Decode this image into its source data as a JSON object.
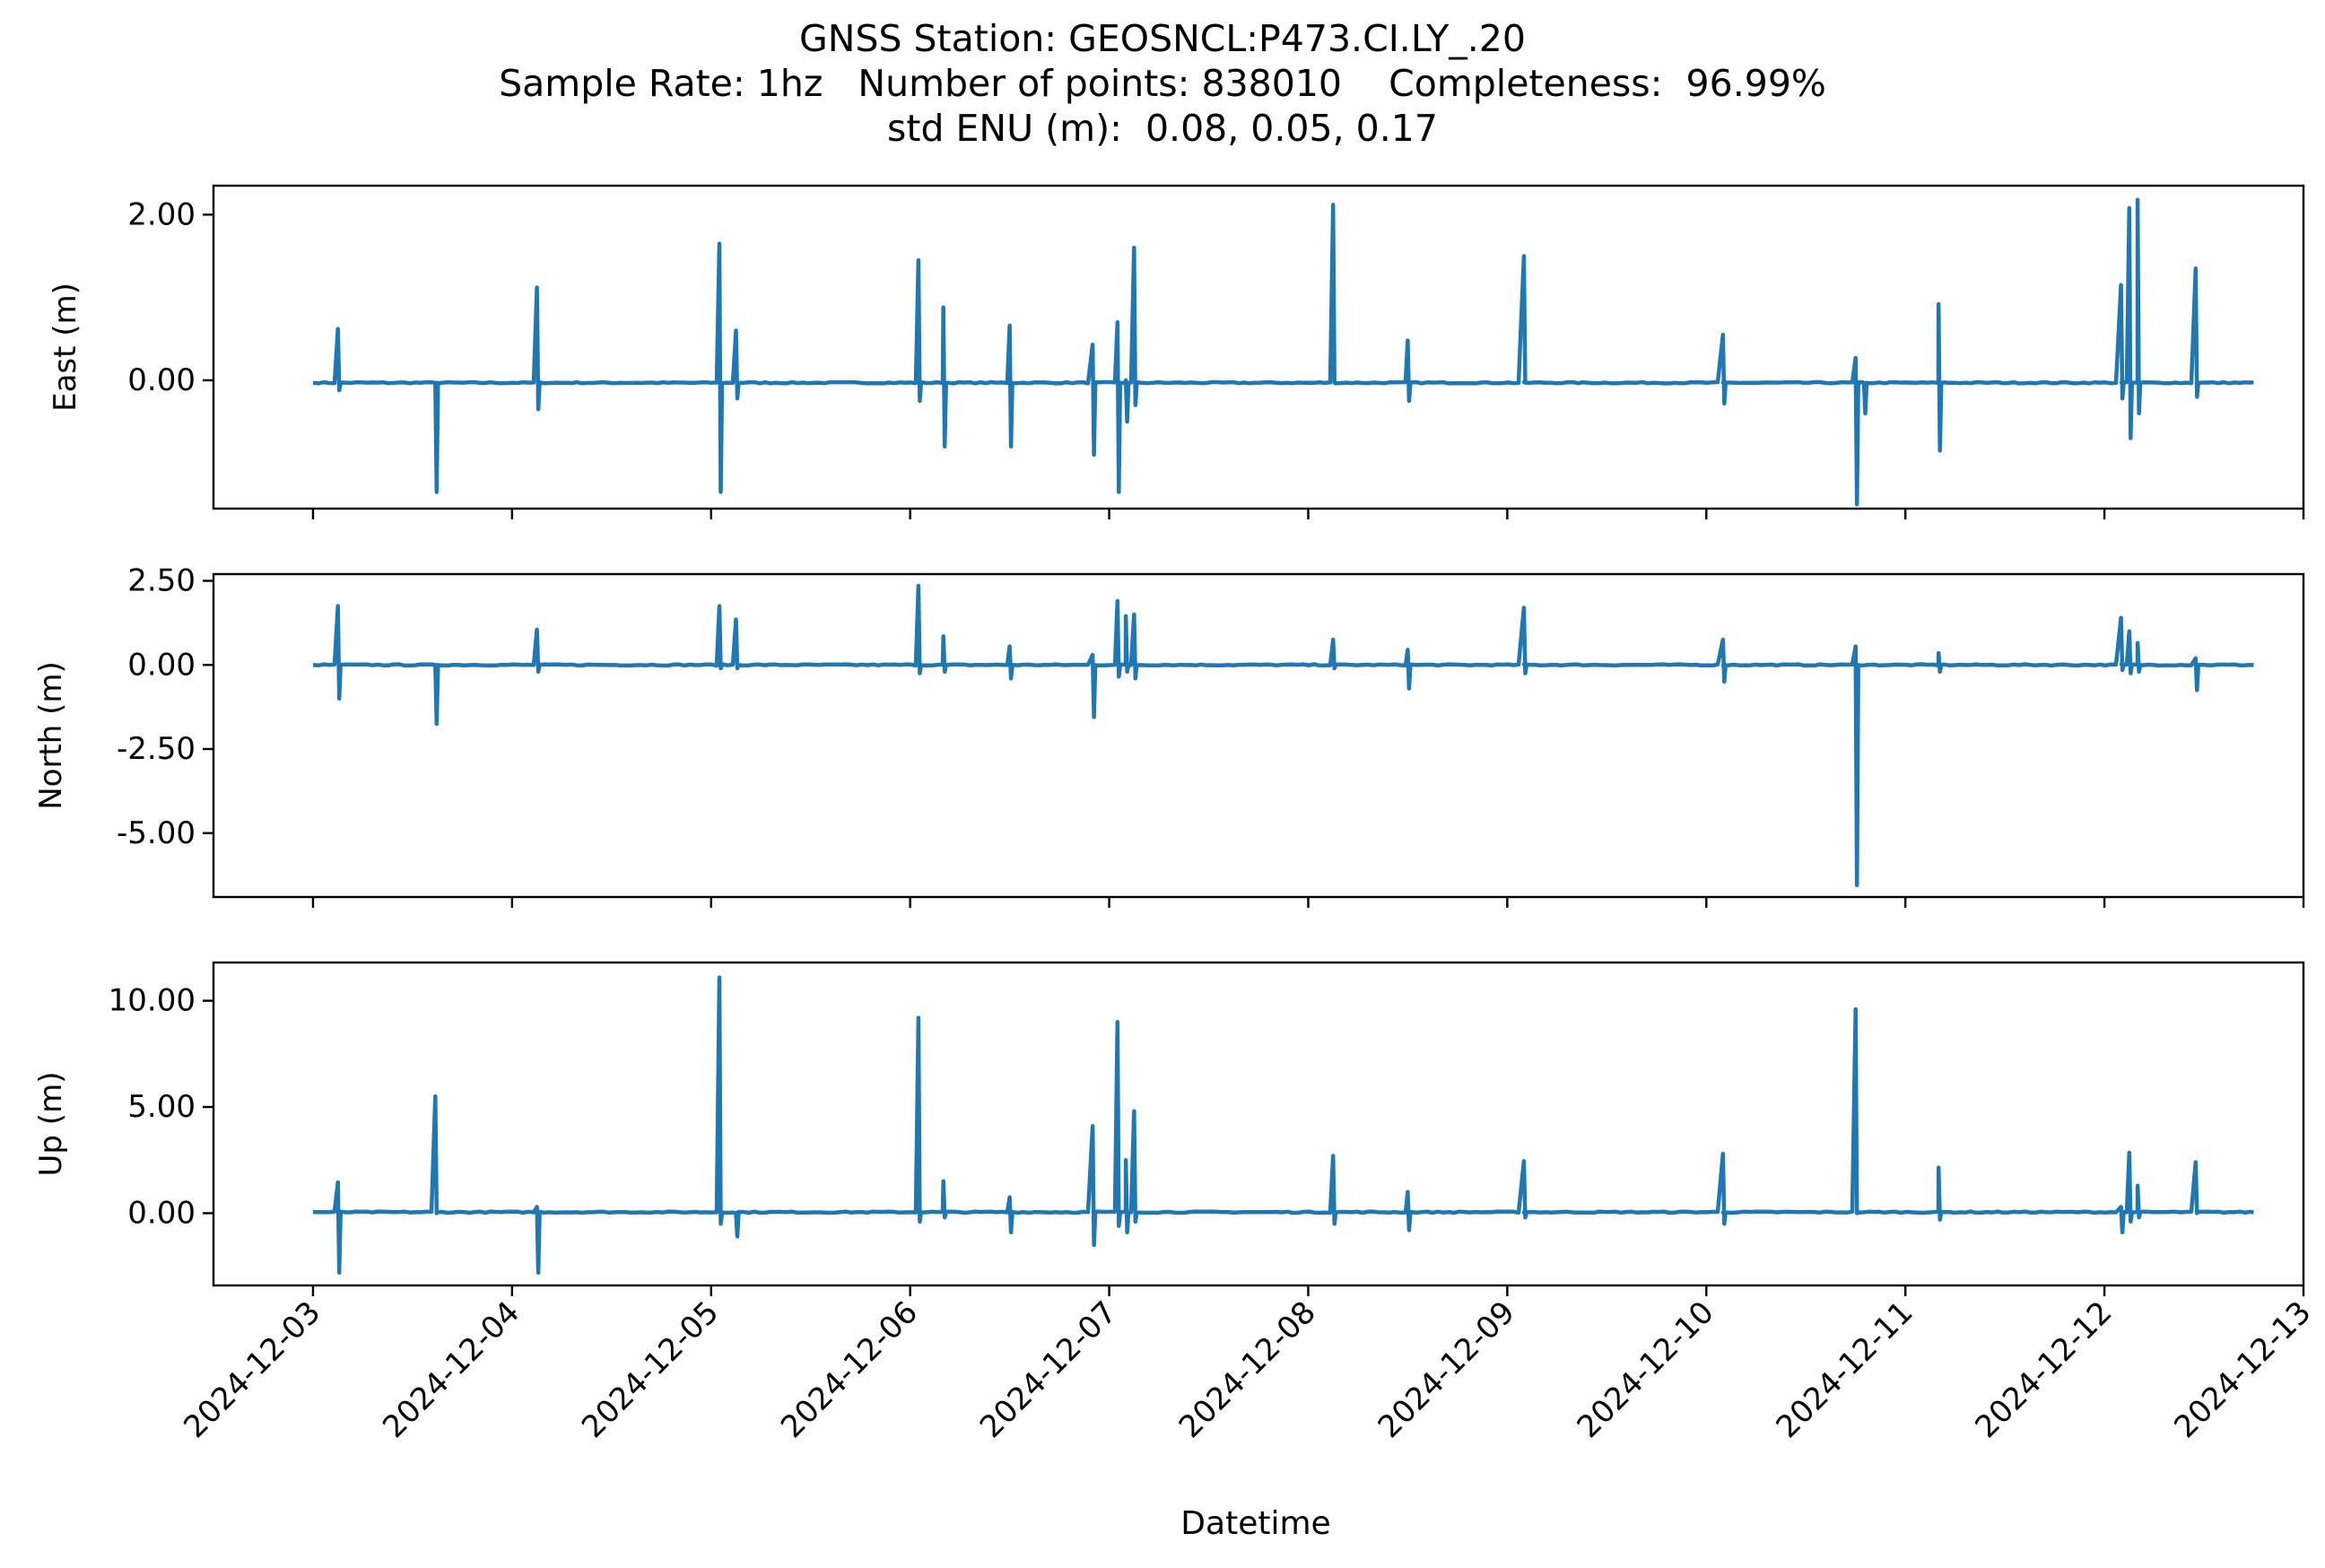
{
  "header": {
    "title_line1": "GNSS Station: GEOSNCL:P473.CI.LY_.20",
    "title_line2": "Sample Rate: 1hz   Number of points: 838010    Completeness:  96.99%",
    "title_line3": "std ENU (m):  0.08, 0.05, 0.17"
  },
  "chart_data": {
    "type": "line",
    "xlabel": "Datetime",
    "x_start": "2024-12-03T00:00",
    "x_end": "2024-12-12T18:00",
    "xlim": [
      "2024-12-02T12:00",
      "2024-12-13T00:00"
    ],
    "x_ticks": [
      "2024-12-03",
      "2024-12-04",
      "2024-12-05",
      "2024-12-06",
      "2024-12-07",
      "2024-12-08",
      "2024-12-09",
      "2024-12-10",
      "2024-12-11",
      "2024-12-12",
      "2024-12-13"
    ],
    "color": "#1f77b4",
    "grid": false,
    "panels": [
      {
        "ylabel": "East (m)",
        "ylim": [
          -1.55,
          2.35
        ],
        "yticks": [
          0,
          2
        ],
        "ytick_labels": [
          "0.00",
          "2.00"
        ],
        "baseline": -0.03,
        "spikes": [
          {
            "t": "2024-12-03T03:00",
            "min": -0.12,
            "max": 0.62
          },
          {
            "t": "2024-12-03T14:45",
            "min": -1.35,
            "max": -0.03
          },
          {
            "t": "2024-12-04T03:00",
            "min": -0.35,
            "max": 1.12
          },
          {
            "t": "2024-12-05T01:00",
            "min": -1.35,
            "max": 1.65
          },
          {
            "t": "2024-12-05T03:00",
            "min": -0.22,
            "max": 0.6
          },
          {
            "t": "2024-12-06T01:00",
            "min": -0.25,
            "max": 1.45
          },
          {
            "t": "2024-12-06T04:00",
            "min": -0.8,
            "max": 0.88
          },
          {
            "t": "2024-12-06T12:00",
            "min": -0.8,
            "max": 0.66
          },
          {
            "t": "2024-12-06T22:00",
            "min": -0.9,
            "max": 0.43
          },
          {
            "t": "2024-12-07T01:00",
            "min": -1.35,
            "max": 0.7
          },
          {
            "t": "2024-12-07T02:00",
            "min": -0.5,
            "max": 0.0
          },
          {
            "t": "2024-12-07T03:00",
            "min": -0.3,
            "max": 1.6
          },
          {
            "t": "2024-12-08T03:00",
            "min": -0.03,
            "max": 2.12
          },
          {
            "t": "2024-12-08T12:00",
            "min": -0.25,
            "max": 0.48
          },
          {
            "t": "2024-12-09T02:00",
            "min": -0.03,
            "max": 1.5
          },
          {
            "t": "2024-12-10T02:00",
            "min": -0.28,
            "max": 0.55
          },
          {
            "t": "2024-12-10T18:00",
            "min": -1.5,
            "max": 0.27
          },
          {
            "t": "2024-12-10T19:00",
            "min": -0.4,
            "max": -0.03
          },
          {
            "t": "2024-12-11T04:00",
            "min": -0.85,
            "max": 0.92
          },
          {
            "t": "2024-12-12T02:00",
            "min": -0.22,
            "max": 1.15
          },
          {
            "t": "2024-12-12T03:00",
            "min": -0.7,
            "max": 2.08
          },
          {
            "t": "2024-12-12T04:00",
            "min": -0.4,
            "max": 2.18
          },
          {
            "t": "2024-12-12T11:00",
            "min": -0.2,
            "max": 1.35
          }
        ]
      },
      {
        "ylabel": "North (m)",
        "ylim": [
          -6.9,
          2.7
        ],
        "yticks": [
          2.5,
          0,
          -2.5,
          -5
        ],
        "ytick_labels": [
          "2.50",
          "0.00",
          "-2.50",
          "-5.00"
        ],
        "baseline": 0.0,
        "spikes": [
          {
            "t": "2024-12-03T03:00",
            "min": -1.0,
            "max": 1.75
          },
          {
            "t": "2024-12-03T14:45",
            "min": -1.75,
            "max": 0.0
          },
          {
            "t": "2024-12-04T03:00",
            "min": -0.2,
            "max": 1.05
          },
          {
            "t": "2024-12-05T01:00",
            "min": -0.1,
            "max": 1.75
          },
          {
            "t": "2024-12-05T03:00",
            "min": -0.1,
            "max": 1.35
          },
          {
            "t": "2024-12-06T01:00",
            "min": -0.25,
            "max": 2.35
          },
          {
            "t": "2024-12-06T04:00",
            "min": -0.2,
            "max": 0.85
          },
          {
            "t": "2024-12-06T12:00",
            "min": -0.4,
            "max": 0.55
          },
          {
            "t": "2024-12-06T22:00",
            "min": -1.55,
            "max": 0.3
          },
          {
            "t": "2024-12-07T01:00",
            "min": -0.35,
            "max": 1.9
          },
          {
            "t": "2024-12-07T02:00",
            "min": -0.2,
            "max": 1.45
          },
          {
            "t": "2024-12-07T03:00",
            "min": -0.4,
            "max": 1.5
          },
          {
            "t": "2024-12-08T03:00",
            "min": -0.1,
            "max": 0.75
          },
          {
            "t": "2024-12-08T12:00",
            "min": -0.7,
            "max": 0.45
          },
          {
            "t": "2024-12-09T02:00",
            "min": -0.25,
            "max": 1.7
          },
          {
            "t": "2024-12-10T02:00",
            "min": -0.5,
            "max": 0.75
          },
          {
            "t": "2024-12-10T18:00",
            "min": -6.55,
            "max": 0.55
          },
          {
            "t": "2024-12-11T04:00",
            "min": -0.2,
            "max": 0.35
          },
          {
            "t": "2024-12-12T02:00",
            "min": -0.15,
            "max": 1.4
          },
          {
            "t": "2024-12-12T03:00",
            "min": -0.25,
            "max": 1.0
          },
          {
            "t": "2024-12-12T04:00",
            "min": -0.2,
            "max": 0.65
          },
          {
            "t": "2024-12-12T11:00",
            "min": -0.75,
            "max": 0.2
          }
        ]
      },
      {
        "ylabel": "Up (m)",
        "ylim": [
          -3.4,
          11.8
        ],
        "yticks": [
          10,
          5,
          0
        ],
        "ytick_labels": [
          "10.00",
          "5.00",
          "0.00"
        ],
        "baseline": 0.05,
        "spikes": [
          {
            "t": "2024-12-03T03:00",
            "min": -2.8,
            "max": 1.45
          },
          {
            "t": "2024-12-03T14:45",
            "min": 0.0,
            "max": 5.5
          },
          {
            "t": "2024-12-04T03:00",
            "min": -2.8,
            "max": 0.3
          },
          {
            "t": "2024-12-05T01:00",
            "min": -0.5,
            "max": 11.1
          },
          {
            "t": "2024-12-05T03:00",
            "min": -1.1,
            "max": 0.0
          },
          {
            "t": "2024-12-06T01:00",
            "min": -0.4,
            "max": 9.2
          },
          {
            "t": "2024-12-06T04:00",
            "min": -0.2,
            "max": 1.5
          },
          {
            "t": "2024-12-06T12:00",
            "min": -0.9,
            "max": 0.75
          },
          {
            "t": "2024-12-06T22:00",
            "min": -1.5,
            "max": 4.1
          },
          {
            "t": "2024-12-07T01:00",
            "min": -0.6,
            "max": 9.0
          },
          {
            "t": "2024-12-07T02:00",
            "min": -0.9,
            "max": 2.5
          },
          {
            "t": "2024-12-07T03:00",
            "min": -0.4,
            "max": 4.8
          },
          {
            "t": "2024-12-08T03:00",
            "min": -0.5,
            "max": 2.7
          },
          {
            "t": "2024-12-08T12:00",
            "min": -0.8,
            "max": 1.0
          },
          {
            "t": "2024-12-09T02:00",
            "min": -0.2,
            "max": 2.45
          },
          {
            "t": "2024-12-10T02:00",
            "min": -0.5,
            "max": 2.8
          },
          {
            "t": "2024-12-10T18:00",
            "min": 0.0,
            "max": 9.6
          },
          {
            "t": "2024-12-11T04:00",
            "min": -0.3,
            "max": 2.15
          },
          {
            "t": "2024-12-12T02:00",
            "min": -0.9,
            "max": 0.3
          },
          {
            "t": "2024-12-12T03:00",
            "min": -0.4,
            "max": 2.85
          },
          {
            "t": "2024-12-12T04:00",
            "min": -0.2,
            "max": 1.3
          },
          {
            "t": "2024-12-12T11:00",
            "min": 0.0,
            "max": 2.4
          }
        ]
      }
    ]
  }
}
